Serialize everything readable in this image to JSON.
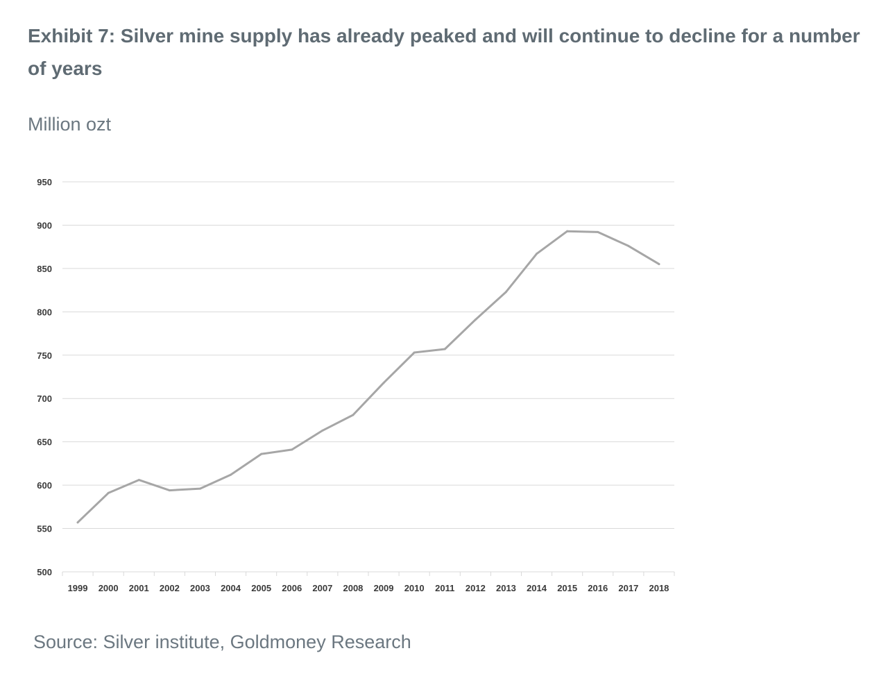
{
  "page": {
    "title": "Exhibit 7: Silver mine supply has already peaked and will continue to decline for a number of years",
    "unit_label": "Million ozt",
    "source": "Source: Silver institute, Goldmoney Research"
  },
  "chart_data": {
    "type": "line",
    "title": "",
    "xlabel": "",
    "ylabel": "Million ozt",
    "categories": [
      "1999",
      "2000",
      "2001",
      "2002",
      "2003",
      "2004",
      "2005",
      "2006",
      "2007",
      "2008",
      "2009",
      "2010",
      "2011",
      "2012",
      "2013",
      "2014",
      "2015",
      "2016",
      "2017",
      "2018"
    ],
    "series": [
      {
        "values": [
          557,
          591,
          606,
          594,
          596,
          612,
          636,
          641,
          663,
          681,
          718,
          753,
          757,
          791,
          823,
          867,
          893,
          892,
          876,
          855
        ]
      }
    ],
    "ylim": [
      500,
      950
    ],
    "yticks": [
      500,
      550,
      600,
      650,
      700,
      750,
      800,
      850,
      900,
      950
    ],
    "grid": true,
    "line_color": "#a6a6a6",
    "grid_color": "#d9d9d9"
  }
}
